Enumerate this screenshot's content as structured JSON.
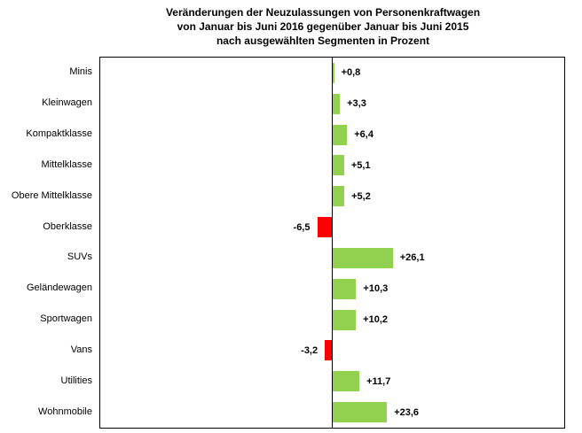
{
  "chart_data": {
    "type": "bar",
    "orientation": "horizontal",
    "title_lines": [
      "Veränderungen der Neuzulassungen von Personenkraftwagen",
      "von Januar bis Juni 2016 gegenüber Januar bis Juni 2015",
      "nach ausgewählten Segmenten in Prozent"
    ],
    "categories": [
      "Minis",
      "Kleinwagen",
      "Kompaktklasse",
      "Mittelklasse",
      "Obere Mittelklasse",
      "Oberklasse",
      "SUVs",
      "Geländewagen",
      "Sportwagen",
      "Vans",
      "Utilities",
      "Wohnmobile"
    ],
    "values": [
      0.8,
      3.3,
      6.4,
      5.1,
      5.2,
      -6.5,
      26.1,
      10.3,
      10.2,
      -3.2,
      11.7,
      23.6
    ],
    "value_labels": [
      "+0,8",
      "+3,3",
      "+6,4",
      "+5,1",
      "+5,2",
      "-6,5",
      "+26,1",
      "+10,3",
      "+10,2",
      "-3,2",
      "+11,7",
      "+23,6"
    ],
    "unit": "Prozent",
    "xlim": [
      -100,
      100
    ],
    "grid": false,
    "legend": "none",
    "colors": {
      "positive_bar": "#92D050",
      "negative_bar": "#FF0000",
      "axis": "#000000",
      "text": "#000000",
      "background": "#FFFFFF"
    }
  }
}
